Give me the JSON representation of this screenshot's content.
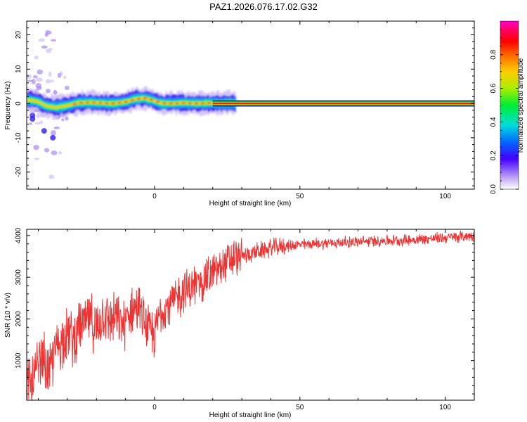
{
  "title": "PAZ1.2026.076.17.02.G32",
  "chart_data": [
    {
      "type": "heatmap",
      "title": "PAZ1.2026.076.17.02.G32",
      "xlabel": "Height of straight line (km)",
      "ylabel": "Frequency (Hz)",
      "xlim": [
        -44,
        110
      ],
      "ylim": [
        -25,
        24
      ],
      "xticks": [
        0,
        50,
        100
      ],
      "yticks": [
        -20,
        -10,
        0,
        10,
        20
      ],
      "colorbar": {
        "label": "Normalized spectral amplitude",
        "range": [
          0,
          1
        ],
        "ticks": [
          0.0,
          0.2,
          0.4,
          0.6,
          0.8
        ],
        "tick_labels": [
          "0.0",
          "0.2",
          "0.4",
          "0.6",
          "0.8"
        ]
      },
      "ridge_frequency": {
        "height_km": [
          -43,
          -40,
          -37,
          -34,
          -30,
          -26,
          -22,
          -18,
          -14,
          -10,
          -7,
          -4,
          -1,
          2,
          6,
          10,
          14,
          18,
          22,
          26,
          30,
          40,
          60,
          80,
          100,
          110
        ],
        "freq_hz": [
          1.0,
          0.5,
          -0.8,
          -1.2,
          -0.6,
          0.2,
          0.3,
          0.1,
          0.0,
          0.5,
          1.2,
          1.6,
          1.0,
          0.1,
          0.0,
          0.2,
          0.0,
          0.1,
          0.0,
          0.1,
          0.0,
          0.0,
          0.0,
          0.0,
          0.0,
          0.0
        ]
      }
    },
    {
      "type": "line",
      "xlabel": "Height of straight line (km)",
      "ylabel": "SNR (10 * v/v)",
      "xlim": [
        -44,
        110
      ],
      "ylim": [
        50,
        4150
      ],
      "xticks": [
        0,
        50,
        100
      ],
      "yticks": [
        1000,
        2000,
        3000,
        4000
      ],
      "series": [
        {
          "name": "SNR",
          "color": "#ee3333",
          "x": [
            -44,
            -42,
            -40,
            -38,
            -36,
            -34,
            -32,
            -30,
            -28,
            -26,
            -24,
            -22,
            -20,
            -18,
            -16,
            -14,
            -12,
            -10,
            -8,
            -6,
            -4,
            -2,
            0,
            2,
            4,
            6,
            8,
            10,
            12,
            14,
            16,
            18,
            20,
            22,
            24,
            26,
            28,
            30,
            32,
            35,
            40,
            45,
            50,
            60,
            70,
            80,
            90,
            100,
            110
          ],
          "y": [
            300,
            500,
            800,
            1000,
            700,
            1300,
            1500,
            1700,
            1500,
            1800,
            1900,
            2000,
            1700,
            2100,
            2000,
            2000,
            1900,
            1900,
            2200,
            2300,
            2000,
            1700,
            1600,
            2200,
            2300,
            2400,
            2500,
            2700,
            2700,
            2800,
            2900,
            3000,
            3100,
            3200,
            3300,
            3400,
            3450,
            3500,
            3550,
            3600,
            3700,
            3750,
            3780,
            3820,
            3850,
            3880,
            3900,
            3950,
            4000
          ]
        }
      ]
    }
  ]
}
